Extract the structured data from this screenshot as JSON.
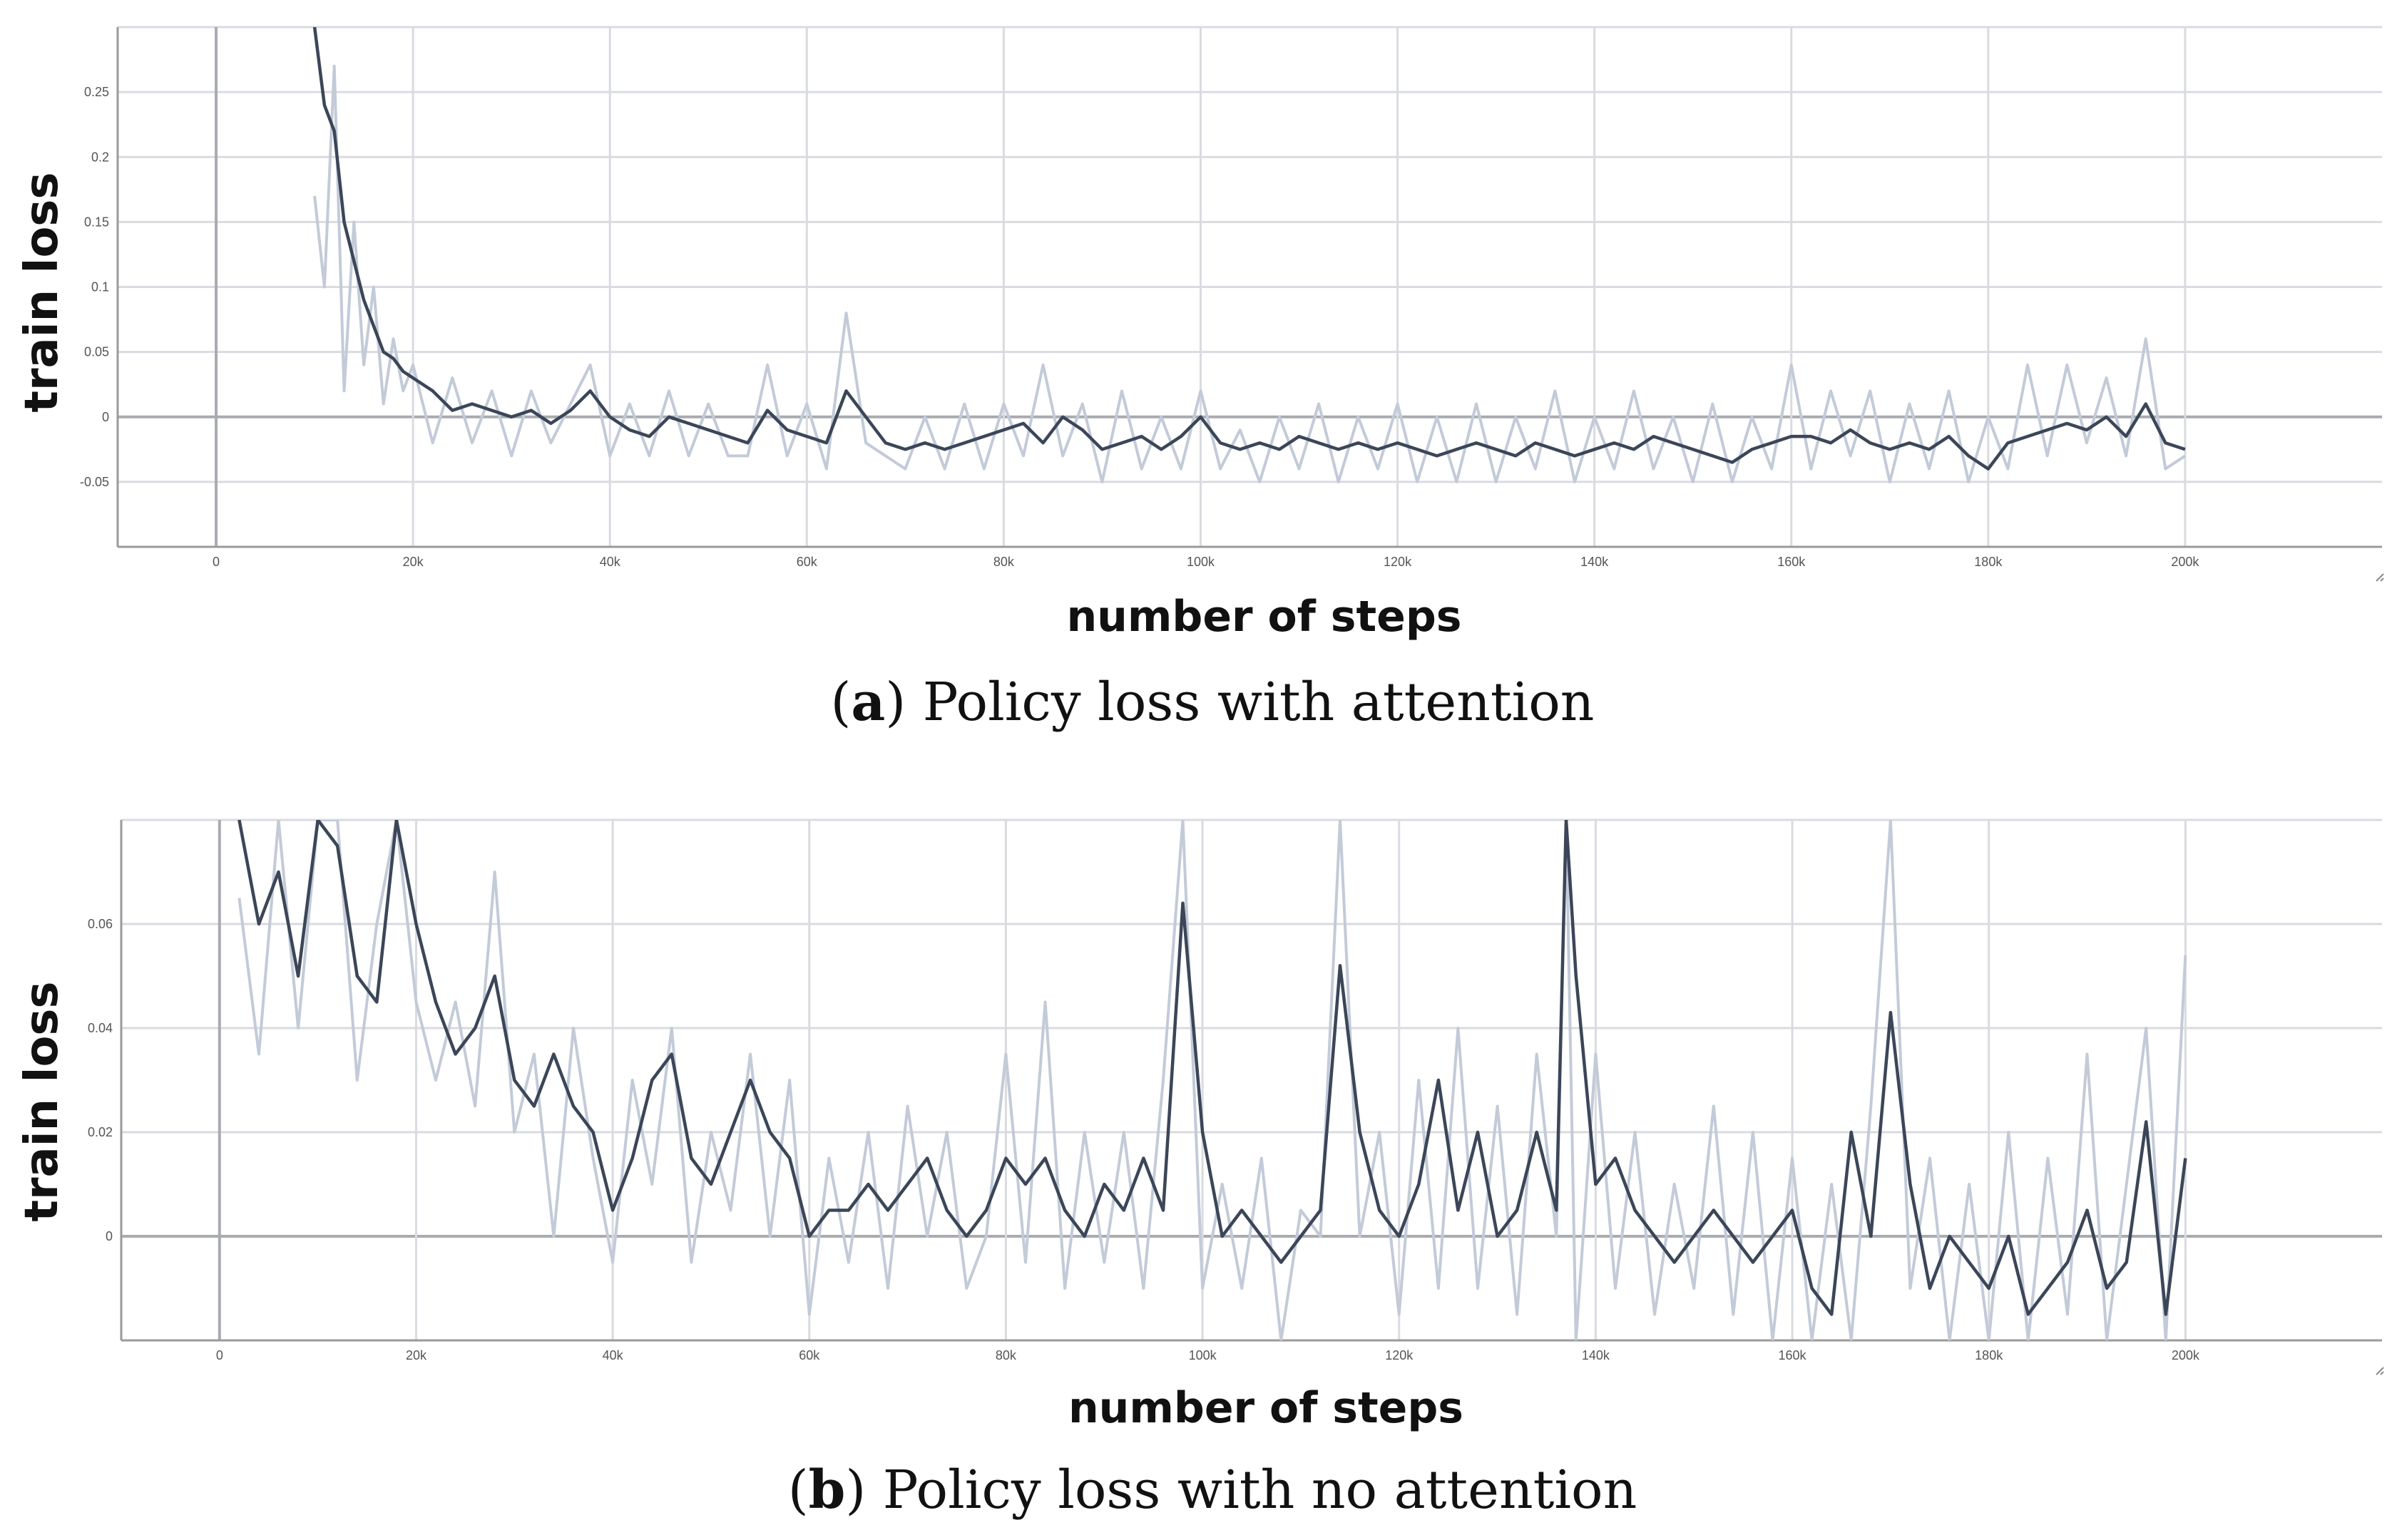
{
  "chart_data": [
    {
      "type": "line",
      "ylabel": "train loss",
      "xlabel": "number of steps",
      "caption_letter": "a",
      "caption_text": "Policy loss with attention",
      "xlim": [
        -10000,
        220000
      ],
      "ylim": [
        -0.1,
        0.3
      ],
      "x_ticks": [
        0,
        20000,
        40000,
        60000,
        80000,
        100000,
        120000,
        140000,
        160000,
        180000,
        200000
      ],
      "x_tick_labels": [
        "0",
        "20k",
        "40k",
        "60k",
        "80k",
        "100k",
        "120k",
        "140k",
        "160k",
        "180k",
        "200k"
      ],
      "y_ticks": [
        -0.05,
        0,
        0.05,
        0.1,
        0.15,
        0.2,
        0.25
      ],
      "y_tick_labels": [
        "-0.05",
        "0",
        "0.05",
        "0.1",
        "0.15",
        "0.2",
        "0.25"
      ],
      "series": [
        {
          "name": "smoothed",
          "x": [
            10000,
            11000,
            12000,
            13000,
            14000,
            15000,
            16000,
            17000,
            18000,
            19000,
            20000,
            22000,
            24000,
            26000,
            28000,
            30000,
            32000,
            34000,
            36000,
            38000,
            40000,
            42000,
            44000,
            46000,
            48000,
            50000,
            52000,
            54000,
            56000,
            58000,
            60000,
            62000,
            64000,
            66000,
            68000,
            70000,
            72000,
            74000,
            76000,
            78000,
            80000,
            82000,
            84000,
            86000,
            88000,
            90000,
            92000,
            94000,
            96000,
            98000,
            100000,
            102000,
            104000,
            106000,
            108000,
            110000,
            112000,
            114000,
            116000,
            118000,
            120000,
            122000,
            124000,
            126000,
            128000,
            130000,
            132000,
            134000,
            136000,
            138000,
            140000,
            142000,
            144000,
            146000,
            148000,
            150000,
            152000,
            154000,
            156000,
            158000,
            160000,
            162000,
            164000,
            166000,
            168000,
            170000,
            172000,
            174000,
            176000,
            178000,
            180000,
            182000,
            184000,
            186000,
            188000,
            190000,
            192000,
            194000,
            196000,
            198000,
            200000
          ],
          "values": [
            0.3,
            0.24,
            0.22,
            0.15,
            0.12,
            0.09,
            0.07,
            0.05,
            0.045,
            0.035,
            0.03,
            0.02,
            0.005,
            0.01,
            0.005,
            0.0,
            0.005,
            -0.005,
            0.005,
            0.02,
            0.0,
            -0.01,
            -0.015,
            0.0,
            -0.005,
            -0.01,
            -0.015,
            -0.02,
            0.005,
            -0.01,
            -0.015,
            -0.02,
            0.02,
            0.0,
            -0.02,
            -0.025,
            -0.02,
            -0.025,
            -0.02,
            -0.015,
            -0.01,
            -0.005,
            -0.02,
            0.0,
            -0.01,
            -0.025,
            -0.02,
            -0.015,
            -0.025,
            -0.015,
            0.0,
            -0.02,
            -0.025,
            -0.02,
            -0.025,
            -0.015,
            -0.02,
            -0.025,
            -0.02,
            -0.025,
            -0.02,
            -0.025,
            -0.03,
            -0.025,
            -0.02,
            -0.025,
            -0.03,
            -0.02,
            -0.025,
            -0.03,
            -0.025,
            -0.02,
            -0.025,
            -0.015,
            -0.02,
            -0.025,
            -0.03,
            -0.035,
            -0.025,
            -0.02,
            -0.015,
            -0.015,
            -0.02,
            -0.01,
            -0.02,
            -0.025,
            -0.02,
            -0.025,
            -0.015,
            -0.03,
            -0.04,
            -0.02,
            -0.015,
            -0.01,
            -0.005,
            -0.01,
            0.0,
            -0.015,
            0.01,
            -0.02,
            -0.025
          ]
        },
        {
          "name": "raw",
          "x": [
            10000,
            11000,
            12000,
            13000,
            14000,
            15000,
            16000,
            17000,
            18000,
            19000,
            20000,
            22000,
            24000,
            26000,
            28000,
            30000,
            32000,
            34000,
            36000,
            38000,
            40000,
            42000,
            44000,
            46000,
            48000,
            50000,
            52000,
            54000,
            56000,
            58000,
            60000,
            62000,
            64000,
            66000,
            68000,
            70000,
            72000,
            74000,
            76000,
            78000,
            80000,
            82000,
            84000,
            86000,
            88000,
            90000,
            92000,
            94000,
            96000,
            98000,
            100000,
            102000,
            104000,
            106000,
            108000,
            110000,
            112000,
            114000,
            116000,
            118000,
            120000,
            122000,
            124000,
            126000,
            128000,
            130000,
            132000,
            134000,
            136000,
            138000,
            140000,
            142000,
            144000,
            146000,
            148000,
            150000,
            152000,
            154000,
            156000,
            158000,
            160000,
            162000,
            164000,
            166000,
            168000,
            170000,
            172000,
            174000,
            176000,
            178000,
            180000,
            182000,
            184000,
            186000,
            188000,
            190000,
            192000,
            194000,
            196000,
            198000,
            200000
          ],
          "values": [
            0.17,
            0.1,
            0.27,
            0.02,
            0.15,
            0.04,
            0.1,
            0.01,
            0.06,
            0.02,
            0.04,
            -0.02,
            0.03,
            -0.02,
            0.02,
            -0.03,
            0.02,
            -0.02,
            0.01,
            0.04,
            -0.03,
            0.01,
            -0.03,
            0.02,
            -0.03,
            0.01,
            -0.03,
            -0.03,
            0.04,
            -0.03,
            0.01,
            -0.04,
            0.08,
            -0.02,
            -0.03,
            -0.04,
            0.0,
            -0.04,
            0.01,
            -0.04,
            0.01,
            -0.03,
            0.04,
            -0.03,
            0.01,
            -0.05,
            0.02,
            -0.04,
            0.0,
            -0.04,
            0.02,
            -0.04,
            -0.01,
            -0.05,
            0.0,
            -0.04,
            0.01,
            -0.05,
            0.0,
            -0.04,
            0.01,
            -0.05,
            0.0,
            -0.05,
            0.01,
            -0.05,
            0.0,
            -0.04,
            0.02,
            -0.05,
            0.0,
            -0.04,
            0.02,
            -0.04,
            0.0,
            -0.05,
            0.01,
            -0.05,
            0.0,
            -0.04,
            0.04,
            -0.04,
            0.02,
            -0.03,
            0.02,
            -0.05,
            0.01,
            -0.04,
            0.02,
            -0.05,
            0.0,
            -0.04,
            0.04,
            -0.03,
            0.04,
            -0.02,
            0.03,
            -0.03,
            0.06,
            -0.04,
            -0.03
          ]
        }
      ]
    },
    {
      "type": "line",
      "ylabel": "train loss",
      "xlabel": "number of steps",
      "caption_letter": "b",
      "caption_text": "Policy loss with no attention",
      "xlim": [
        -10000,
        220000
      ],
      "ylim": [
        -0.02,
        0.08
      ],
      "x_ticks": [
        0,
        20000,
        40000,
        60000,
        80000,
        100000,
        120000,
        140000,
        160000,
        180000,
        200000
      ],
      "x_tick_labels": [
        "0",
        "20k",
        "40k",
        "60k",
        "80k",
        "100k",
        "120k",
        "140k",
        "160k",
        "180k",
        "200k"
      ],
      "y_ticks": [
        0,
        0.02,
        0.04,
        0.06
      ],
      "y_tick_labels": [
        "0",
        "0.02",
        "0.04",
        "0.06"
      ],
      "series": [
        {
          "name": "smoothed",
          "x": [
            2000,
            4000,
            6000,
            8000,
            10000,
            12000,
            14000,
            16000,
            18000,
            20000,
            22000,
            24000,
            26000,
            28000,
            30000,
            32000,
            34000,
            36000,
            38000,
            40000,
            42000,
            44000,
            46000,
            48000,
            50000,
            52000,
            54000,
            56000,
            58000,
            60000,
            62000,
            64000,
            66000,
            68000,
            70000,
            72000,
            74000,
            76000,
            78000,
            80000,
            82000,
            84000,
            86000,
            88000,
            90000,
            92000,
            94000,
            96000,
            98000,
            100000,
            102000,
            104000,
            106000,
            108000,
            110000,
            112000,
            114000,
            116000,
            118000,
            120000,
            122000,
            124000,
            126000,
            128000,
            130000,
            132000,
            134000,
            136000,
            137000,
            138000,
            140000,
            142000,
            144000,
            146000,
            148000,
            150000,
            152000,
            154000,
            156000,
            158000,
            160000,
            162000,
            164000,
            166000,
            168000,
            170000,
            172000,
            174000,
            176000,
            178000,
            180000,
            182000,
            184000,
            186000,
            188000,
            190000,
            192000,
            194000,
            196000,
            198000,
            200000
          ],
          "values": [
            0.08,
            0.06,
            0.07,
            0.05,
            0.08,
            0.075,
            0.05,
            0.045,
            0.08,
            0.06,
            0.045,
            0.035,
            0.04,
            0.05,
            0.03,
            0.025,
            0.035,
            0.025,
            0.02,
            0.005,
            0.015,
            0.03,
            0.035,
            0.015,
            0.01,
            0.02,
            0.03,
            0.02,
            0.015,
            0.0,
            0.005,
            0.005,
            0.01,
            0.005,
            0.01,
            0.015,
            0.005,
            0.0,
            0.005,
            0.015,
            0.01,
            0.015,
            0.005,
            0.0,
            0.01,
            0.005,
            0.015,
            0.005,
            0.064,
            0.02,
            0.0,
            0.005,
            0.0,
            -0.005,
            0.0,
            0.005,
            0.052,
            0.02,
            0.005,
            0.0,
            0.01,
            0.03,
            0.005,
            0.02,
            0.0,
            0.005,
            0.02,
            0.005,
            0.08,
            0.05,
            0.01,
            0.015,
            0.005,
            0.0,
            -0.005,
            0.0,
            0.005,
            0.0,
            -0.005,
            0.0,
            0.005,
            -0.01,
            -0.015,
            0.02,
            0.0,
            0.043,
            0.01,
            -0.01,
            0.0,
            -0.005,
            -0.01,
            0.0,
            -0.015,
            -0.01,
            -0.005,
            0.005,
            -0.01,
            -0.005,
            0.022,
            -0.015,
            0.015
          ]
        },
        {
          "name": "raw",
          "x": [
            2000,
            4000,
            6000,
            8000,
            10000,
            12000,
            14000,
            16000,
            18000,
            20000,
            22000,
            24000,
            26000,
            28000,
            30000,
            32000,
            34000,
            36000,
            38000,
            40000,
            42000,
            44000,
            46000,
            48000,
            50000,
            52000,
            54000,
            56000,
            58000,
            60000,
            62000,
            64000,
            66000,
            68000,
            70000,
            72000,
            74000,
            76000,
            78000,
            80000,
            82000,
            84000,
            86000,
            88000,
            90000,
            92000,
            94000,
            96000,
            98000,
            100000,
            102000,
            104000,
            106000,
            108000,
            110000,
            112000,
            114000,
            116000,
            118000,
            120000,
            122000,
            124000,
            126000,
            128000,
            130000,
            132000,
            134000,
            136000,
            137000,
            138000,
            140000,
            142000,
            144000,
            146000,
            148000,
            150000,
            152000,
            154000,
            156000,
            158000,
            160000,
            162000,
            164000,
            166000,
            168000,
            170000,
            172000,
            174000,
            176000,
            178000,
            180000,
            182000,
            184000,
            186000,
            188000,
            190000,
            192000,
            194000,
            196000,
            198000,
            200000
          ],
          "values": [
            0.065,
            0.035,
            0.08,
            0.04,
            0.08,
            0.08,
            0.03,
            0.06,
            0.08,
            0.045,
            0.03,
            0.045,
            0.025,
            0.07,
            0.02,
            0.035,
            0.0,
            0.04,
            0.015,
            -0.005,
            0.03,
            0.01,
            0.04,
            -0.005,
            0.02,
            0.005,
            0.035,
            0.0,
            0.03,
            -0.015,
            0.015,
            -0.005,
            0.02,
            -0.01,
            0.025,
            0.0,
            0.02,
            -0.01,
            0.0,
            0.035,
            -0.005,
            0.045,
            -0.01,
            0.02,
            -0.005,
            0.02,
            -0.01,
            0.03,
            0.08,
            -0.01,
            0.01,
            -0.01,
            0.015,
            -0.02,
            0.005,
            0.0,
            0.08,
            0.0,
            0.02,
            -0.015,
            0.03,
            -0.01,
            0.04,
            -0.01,
            0.025,
            -0.015,
            0.035,
            0.0,
            0.08,
            -0.02,
            0.035,
            -0.01,
            0.02,
            -0.015,
            0.01,
            -0.01,
            0.025,
            -0.015,
            0.02,
            -0.02,
            0.015,
            -0.02,
            0.01,
            -0.02,
            0.025,
            0.08,
            -0.01,
            0.015,
            -0.02,
            0.01,
            -0.02,
            0.02,
            -0.02,
            0.015,
            -0.015,
            0.035,
            -0.02,
            0.01,
            0.04,
            -0.02,
            0.054
          ]
        }
      ]
    }
  ]
}
